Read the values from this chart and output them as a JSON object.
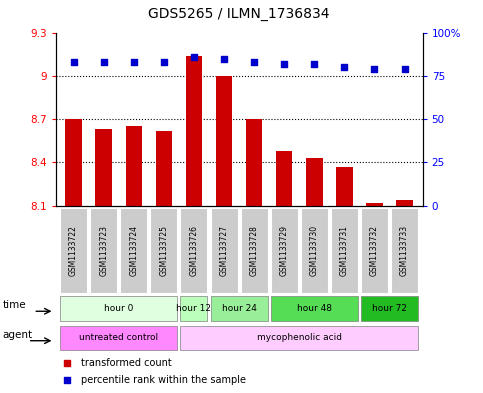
{
  "title": "GDS5265 / ILMN_1736834",
  "samples": [
    "GSM1133722",
    "GSM1133723",
    "GSM1133724",
    "GSM1133725",
    "GSM1133726",
    "GSM1133727",
    "GSM1133728",
    "GSM1133729",
    "GSM1133730",
    "GSM1133731",
    "GSM1133732",
    "GSM1133733"
  ],
  "bar_values": [
    8.7,
    8.63,
    8.65,
    8.62,
    9.14,
    9.0,
    8.7,
    8.48,
    8.43,
    8.37,
    8.12,
    8.14
  ],
  "percentile_values": [
    83,
    83,
    83,
    83,
    86,
    85,
    83,
    82,
    82,
    80,
    79,
    79
  ],
  "bar_color": "#cc0000",
  "percentile_color": "#0000cc",
  "ylim_left": [
    8.1,
    9.3
  ],
  "ylim_right": [
    0,
    100
  ],
  "yticks_left": [
    8.1,
    8.4,
    8.7,
    9.0,
    9.3
  ],
  "yticks_right": [
    0,
    25,
    50,
    75,
    100
  ],
  "ytick_labels_left": [
    "8.1",
    "8.4",
    "8.7",
    "9",
    "9.3"
  ],
  "ytick_labels_right": [
    "0",
    "25",
    "50",
    "75",
    "100%"
  ],
  "hlines": [
    8.4,
    8.7,
    9.0
  ],
  "time_groups": [
    {
      "label": "hour 0",
      "start": 0,
      "end": 3,
      "color": "#e0ffe0"
    },
    {
      "label": "hour 12",
      "start": 4,
      "end": 4,
      "color": "#bbffbb"
    },
    {
      "label": "hour 24",
      "start": 5,
      "end": 6,
      "color": "#99ee99"
    },
    {
      "label": "hour 48",
      "start": 7,
      "end": 9,
      "color": "#55dd55"
    },
    {
      "label": "hour 72",
      "start": 10,
      "end": 11,
      "color": "#22bb22"
    }
  ],
  "agent_groups": [
    {
      "label": "untreated control",
      "start": 0,
      "end": 3,
      "color": "#ff88ff"
    },
    {
      "label": "mycophenolic acid",
      "start": 4,
      "end": 11,
      "color": "#ffccff"
    }
  ],
  "sample_box_color": "#cccccc",
  "legend_items": [
    {
      "color": "#cc0000",
      "label": "transformed count"
    },
    {
      "color": "#0000cc",
      "label": "percentile rank within the sample"
    }
  ]
}
